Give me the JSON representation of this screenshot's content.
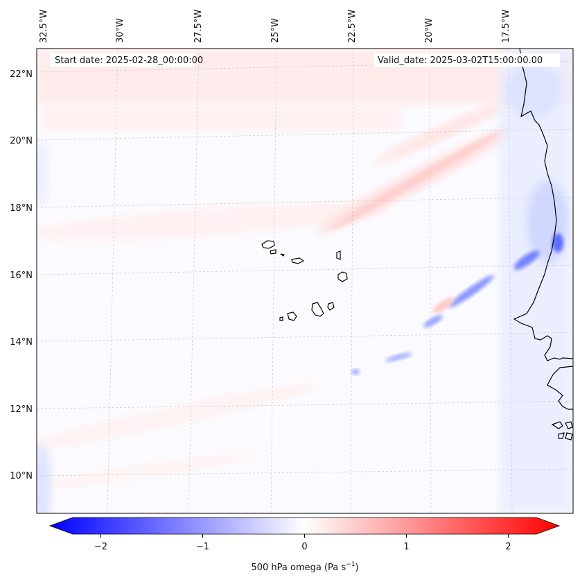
{
  "map": {
    "start_date": "Start date: 2025-02-28_00:00:00",
    "valid_date": "Valid_date: 2025-03-02T15:00:00.00",
    "lon_labels": [
      "32.5°W",
      "30°W",
      "27.5°W",
      "25°W",
      "22.5°W",
      "20°W",
      "17.5°W"
    ],
    "lat_labels": [
      "22°N",
      "20°N",
      "18°N",
      "16°N",
      "14°N",
      "12°N",
      "10°N"
    ]
  },
  "colorbar": {
    "label": "500 hPa omega (Pa s",
    "label_exponent": "−1",
    "label_close": ")",
    "ticks": [
      {
        "value": -2,
        "text": "−2"
      },
      {
        "value": -1,
        "text": "−1"
      },
      {
        "value": 0,
        "text": "0"
      },
      {
        "value": 1,
        "text": "1"
      },
      {
        "value": 2,
        "text": "2"
      }
    ],
    "min": -2.5,
    "max": 2.5,
    "colors": {
      "negative": "#0000ff",
      "zero": "#ffffff",
      "positive": "#ff0000"
    }
  }
}
